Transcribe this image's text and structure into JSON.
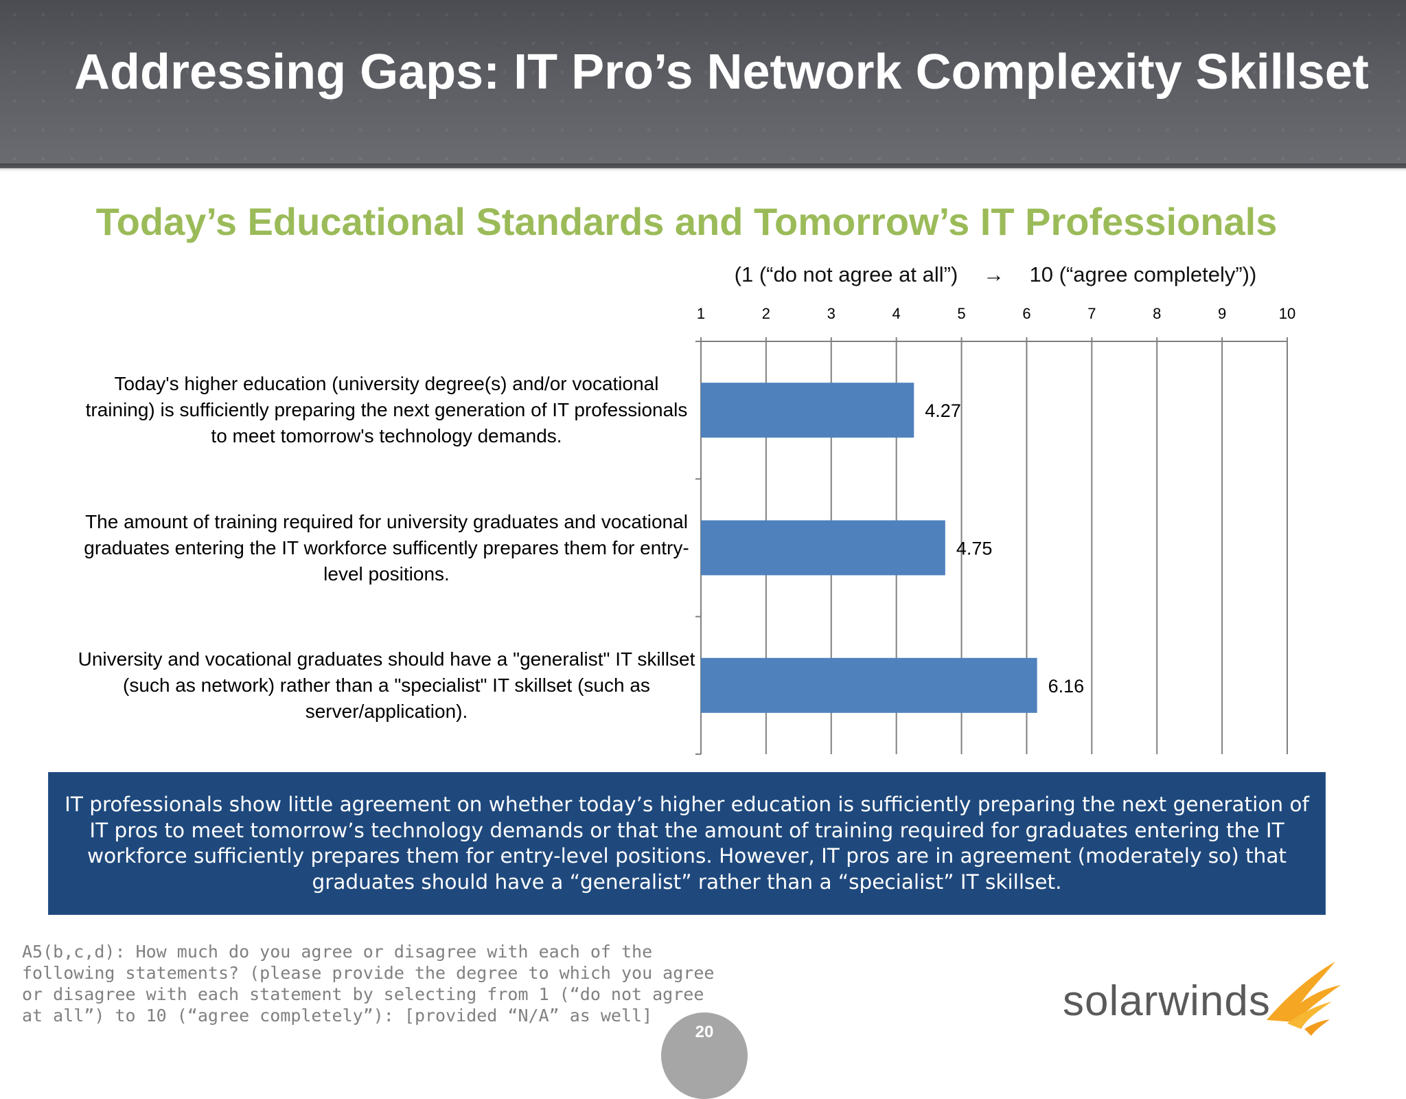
{
  "header": {
    "title": "Addressing Gaps: IT Pro’s Network Complexity Skillset"
  },
  "subtitle": "Today’s Educational Standards and Tomorrow’s IT Professionals",
  "scale_caption": {
    "left": "(1 (“do not agree at all”)",
    "arrow": "→",
    "right": "10 (“agree completely”))"
  },
  "chart_data": {
    "type": "bar",
    "orientation": "horizontal",
    "categories": [
      "Today's higher education (university degree(s) and/or vocational training) is sufficiently preparing the next generation of IT professionals to meet tomorrow's technology demands.",
      "The amount of training required for university graduates and vocational graduates entering the IT workforce sufficently prepares them for entry-level positions.",
      "University and vocational graduates should have a \"generalist\" IT skillset (such as network) rather than a \"specialist\" IT skillset (such as server/application)."
    ],
    "values": [
      4.27,
      4.75,
      6.16
    ],
    "data_labels": [
      "4.27",
      "4.75",
      "6.16"
    ],
    "xlim": [
      1,
      10
    ],
    "ticks": [
      "1",
      "2",
      "3",
      "4",
      "5",
      "6",
      "7",
      "8",
      "9",
      "10"
    ],
    "tick_position": "top",
    "grid": true,
    "bar_color": "#4f81bd"
  },
  "callout": {
    "text": "IT professionals show little agreement on whether today’s higher education is sufficiently preparing the next generation of IT pros to meet tomorrow’s technology demands or that the amount of training required for graduates entering the IT workforce sufficiently prepares them for entry-level positions. However, IT pros are in agreement (moderately so) that graduates should have a “generalist” rather than a “specialist” IT skillset.",
    "background": "#1f497d"
  },
  "footnote": "A5(b,c,d): How much do you agree or disagree with each of the following statements? (please provide the degree to which you agree or disagree with each statement by selecting from 1 (“do not agree at all”) to 10 (“agree completely”): [provided “N/A” as well]",
  "page_number": "20",
  "logo": {
    "text": "solarwinds",
    "icon": "flame-icon",
    "accent": "#f5a623"
  }
}
